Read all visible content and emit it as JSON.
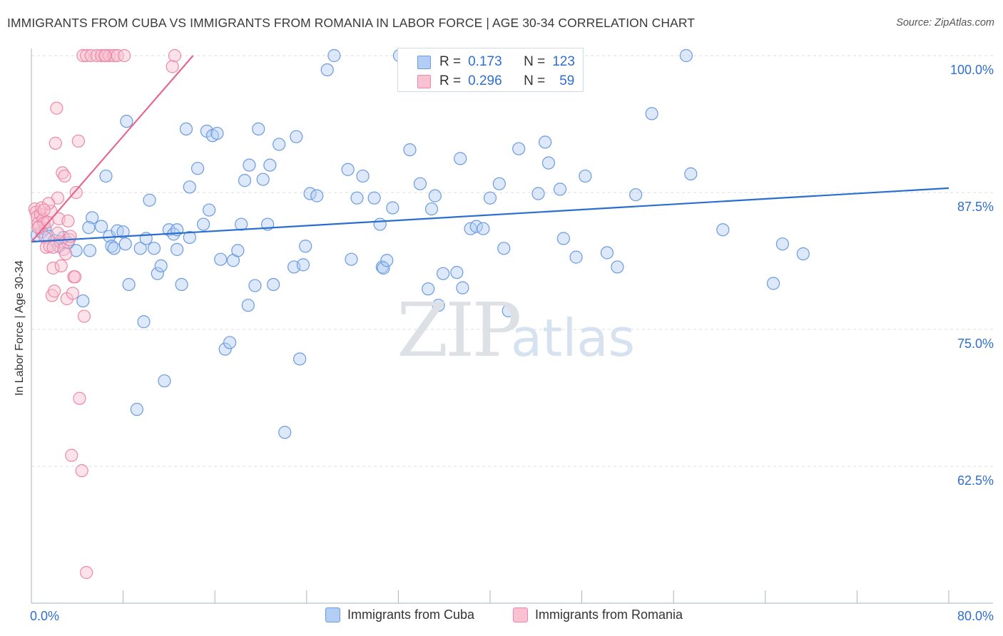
{
  "title": "IMMIGRANTS FROM CUBA VS IMMIGRANTS FROM ROMANIA IN LABOR FORCE | AGE 30-34 CORRELATION CHART",
  "source": "Source: ZipAtlas.com",
  "watermark": {
    "zip": "ZIP",
    "atlas": "atlas"
  },
  "stats": {
    "r_label": "R =",
    "n_label": "N =",
    "series": [
      {
        "name": "Immigrants from Cuba",
        "r": "0.173",
        "n": "123"
      },
      {
        "name": "Immigrants from Romania",
        "r": "0.296",
        "n": "59"
      }
    ]
  },
  "colors": {
    "cuba_fill": "#b3cef5",
    "cuba_stroke": "#6a9be0",
    "cuba_line": "#2a6fcf",
    "romania_fill": "#f9c1d1",
    "romania_stroke": "#ee88a8",
    "romania_line": "#e5688f",
    "tick_text": "#2e6fd0",
    "grid": "#d8dde3"
  },
  "chart_data": {
    "type": "scatter",
    "title": "IMMIGRANTS FROM CUBA VS IMMIGRANTS FROM ROMANIA IN LABOR FORCE | AGE 30-34 CORRELATION CHART",
    "xlabel": "",
    "ylabel": "In Labor Force | Age 30-34",
    "xlim": [
      0,
      80
    ],
    "ylim": [
      50.0,
      100.5
    ],
    "x_tick_labels": [
      "0.0%",
      "80.0%"
    ],
    "y_ticks": [
      62.5,
      75.0,
      87.5,
      100.0
    ],
    "y_tick_labels": [
      "62.5%",
      "75.0%",
      "87.5%",
      "100.0%"
    ],
    "legend_position": "bottom-center",
    "series": [
      {
        "name": "Immigrants from Cuba",
        "trend": {
          "x": [
            0.0,
            80.0
          ],
          "y": [
            83.0,
            87.9
          ]
        },
        "points": [
          [
            0.5,
            83.6
          ],
          [
            0.9,
            83.9
          ],
          [
            1.2,
            84.2
          ],
          [
            1.5,
            83.5
          ],
          [
            2.0,
            83.1
          ],
          [
            2.4,
            82.6
          ],
          [
            2.8,
            83.4
          ],
          [
            3.2,
            82.9
          ],
          [
            3.9,
            82.2
          ],
          [
            4.5,
            77.6
          ],
          [
            5.1,
            82.2
          ],
          [
            5.3,
            85.2
          ],
          [
            5.0,
            84.3
          ],
          [
            6.1,
            84.4
          ],
          [
            6.5,
            89.0
          ],
          [
            6.8,
            83.5
          ],
          [
            7.0,
            82.6
          ],
          [
            7.2,
            82.4
          ],
          [
            7.5,
            84.0
          ],
          [
            8.0,
            83.9
          ],
          [
            8.2,
            82.8
          ],
          [
            8.5,
            79.1
          ],
          [
            8.3,
            94.0
          ],
          [
            9.2,
            67.7
          ],
          [
            9.5,
            82.4
          ],
          [
            9.8,
            75.7
          ],
          [
            10.0,
            83.3
          ],
          [
            10.3,
            86.8
          ],
          [
            10.7,
            82.4
          ],
          [
            11.0,
            80.1
          ],
          [
            11.3,
            80.8
          ],
          [
            11.6,
            70.3
          ],
          [
            12.0,
            84.1
          ],
          [
            12.4,
            83.7
          ],
          [
            12.7,
            84.1
          ],
          [
            12.7,
            82.3
          ],
          [
            13.1,
            79.1
          ],
          [
            13.5,
            93.3
          ],
          [
            13.8,
            88.0
          ],
          [
            13.8,
            83.4
          ],
          [
            14.5,
            89.7
          ],
          [
            15.0,
            84.6
          ],
          [
            15.3,
            93.1
          ],
          [
            15.5,
            85.9
          ],
          [
            15.8,
            92.7
          ],
          [
            16.2,
            92.9
          ],
          [
            16.5,
            81.4
          ],
          [
            16.9,
            73.2
          ],
          [
            17.3,
            73.8
          ],
          [
            17.6,
            81.3
          ],
          [
            18.0,
            82.2
          ],
          [
            18.3,
            84.6
          ],
          [
            18.6,
            88.6
          ],
          [
            18.9,
            77.2
          ],
          [
            19.0,
            90.0
          ],
          [
            19.5,
            79.0
          ],
          [
            19.8,
            93.3
          ],
          [
            20.2,
            88.7
          ],
          [
            20.6,
            84.6
          ],
          [
            20.8,
            90.0
          ],
          [
            21.1,
            79.1
          ],
          [
            21.6,
            91.9
          ],
          [
            22.1,
            65.6
          ],
          [
            22.9,
            80.7
          ],
          [
            23.1,
            92.6
          ],
          [
            23.4,
            72.3
          ],
          [
            23.7,
            80.9
          ],
          [
            23.9,
            82.6
          ],
          [
            24.3,
            87.4
          ],
          [
            24.9,
            87.2
          ],
          [
            25.8,
            98.7
          ],
          [
            26.4,
            100.0
          ],
          [
            27.6,
            89.6
          ],
          [
            27.9,
            81.4
          ],
          [
            28.4,
            87.0
          ],
          [
            28.9,
            89.0
          ],
          [
            29.9,
            87.0
          ],
          [
            30.4,
            84.6
          ],
          [
            30.6,
            80.7
          ],
          [
            30.7,
            80.6
          ],
          [
            31.0,
            81.3
          ],
          [
            31.5,
            86.1
          ],
          [
            33.0,
            91.4
          ],
          [
            33.9,
            88.3
          ],
          [
            34.6,
            78.7
          ],
          [
            34.9,
            86.0
          ],
          [
            35.2,
            87.2
          ],
          [
            35.5,
            77.2
          ],
          [
            35.9,
            80.1
          ],
          [
            37.1,
            80.2
          ],
          [
            37.4,
            90.6
          ],
          [
            37.6,
            78.8
          ],
          [
            38.3,
            84.2
          ],
          [
            38.8,
            84.4
          ],
          [
            39.4,
            84.2
          ],
          [
            40.0,
            87.0
          ],
          [
            40.8,
            88.3
          ],
          [
            41.2,
            82.4
          ],
          [
            41.6,
            76.7
          ],
          [
            42.5,
            91.5
          ],
          [
            44.2,
            87.4
          ],
          [
            44.8,
            92.1
          ],
          [
            45.1,
            90.2
          ],
          [
            46.1,
            87.8
          ],
          [
            46.4,
            83.3
          ],
          [
            47.5,
            81.6
          ],
          [
            48.3,
            89.0
          ],
          [
            50.2,
            82.0
          ],
          [
            51.1,
            80.7
          ],
          [
            52.7,
            87.3
          ],
          [
            54.1,
            94.7
          ],
          [
            57.1,
            100.0
          ],
          [
            57.5,
            89.2
          ],
          [
            60.3,
            84.1
          ],
          [
            64.7,
            79.2
          ],
          [
            65.5,
            82.8
          ],
          [
            67.3,
            81.9
          ],
          [
            32.1,
            100.0
          ]
        ]
      },
      {
        "name": "Immigrants from Romania",
        "trend": {
          "x": [
            0.0,
            14.1
          ],
          "y": [
            83.0,
            100.0
          ]
        },
        "points": [
          [
            0.3,
            86.0
          ],
          [
            0.4,
            85.7
          ],
          [
            0.5,
            85.3
          ],
          [
            0.6,
            84.7
          ],
          [
            0.7,
            84.4
          ],
          [
            0.8,
            85.5
          ],
          [
            0.9,
            86.1
          ],
          [
            1.0,
            85.0
          ],
          [
            1.1,
            84.7
          ],
          [
            1.2,
            83.4
          ],
          [
            1.3,
            82.5
          ],
          [
            1.4,
            84.8
          ],
          [
            1.6,
            82.6
          ],
          [
            1.7,
            85.8
          ],
          [
            1.8,
            78.1
          ],
          [
            1.9,
            80.6
          ],
          [
            2.0,
            78.5
          ],
          [
            2.1,
            92.0
          ],
          [
            2.2,
            95.2
          ],
          [
            2.3,
            87.0
          ],
          [
            2.4,
            85.1
          ],
          [
            2.5,
            83.0
          ],
          [
            2.6,
            80.8
          ],
          [
            2.7,
            89.3
          ],
          [
            2.8,
            82.3
          ],
          [
            2.9,
            89.0
          ],
          [
            3.0,
            81.9
          ],
          [
            3.1,
            77.8
          ],
          [
            3.2,
            84.9
          ],
          [
            3.3,
            83.2
          ],
          [
            3.4,
            83.5
          ],
          [
            3.5,
            63.5
          ],
          [
            3.6,
            78.3
          ],
          [
            3.7,
            79.8
          ],
          [
            3.8,
            79.8
          ],
          [
            3.9,
            87.5
          ],
          [
            4.1,
            92.2
          ],
          [
            4.2,
            68.7
          ],
          [
            4.5,
            100.0
          ],
          [
            4.8,
            100.0
          ],
          [
            5.2,
            100.0
          ],
          [
            5.7,
            100.0
          ],
          [
            6.1,
            100.0
          ],
          [
            6.5,
            100.0
          ],
          [
            6.8,
            100.0
          ],
          [
            7.2,
            100.0
          ],
          [
            7.5,
            100.0
          ],
          [
            8.1,
            100.0
          ],
          [
            4.4,
            62.1
          ],
          [
            4.6,
            76.2
          ],
          [
            4.8,
            52.8
          ],
          [
            1.5,
            86.5
          ],
          [
            0.6,
            84.3
          ],
          [
            1.9,
            82.5
          ],
          [
            12.3,
            99.0
          ],
          [
            12.5,
            100.0
          ],
          [
            6.4,
            100.0
          ],
          [
            2.3,
            83.8
          ],
          [
            1.1,
            85.9
          ]
        ]
      }
    ]
  }
}
